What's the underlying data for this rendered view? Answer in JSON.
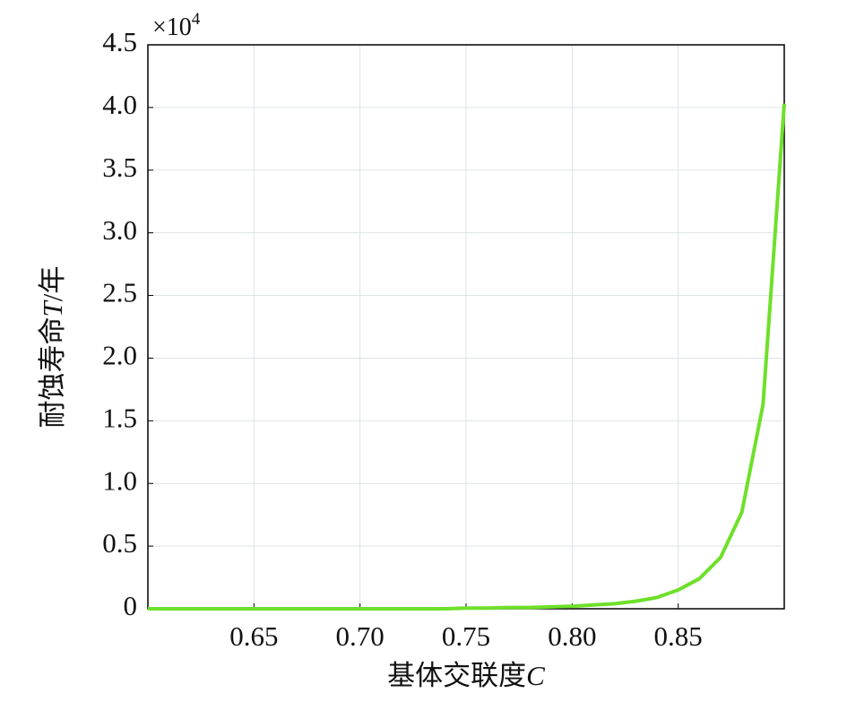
{
  "chart_data": {
    "type": "line",
    "x_label": [
      "基体交联度",
      "C"
    ],
    "y_label": [
      "耐蚀寿命",
      "T",
      "/年"
    ],
    "y_multiplier": [
      "×10",
      "4"
    ],
    "x": [
      0.6,
      0.61,
      0.62,
      0.63,
      0.64,
      0.65,
      0.66,
      0.67,
      0.68,
      0.69,
      0.7,
      0.71,
      0.72,
      0.73,
      0.74,
      0.75,
      0.76,
      0.77,
      0.78,
      0.79,
      0.8,
      0.81,
      0.82,
      0.83,
      0.84,
      0.85,
      0.86,
      0.87,
      0.88,
      0.89,
      0.9
    ],
    "series": [
      {
        "color": "#6ee02a",
        "values": [
          0,
          0,
          0,
          0,
          0,
          0,
          0,
          0,
          0,
          0,
          0,
          0,
          0,
          0,
          0,
          0.005,
          0.005,
          0.01,
          0.01,
          0.015,
          0.02,
          0.03,
          0.04,
          0.06,
          0.09,
          0.15,
          0.24,
          0.41,
          0.77,
          1.63,
          4.03
        ]
      }
    ],
    "xlim": [
      0.6,
      0.9
    ],
    "ylim": [
      0,
      4.5
    ],
    "xticks": [
      0.65,
      {
        "value": 0.7,
        "label": "0.70"
      },
      0.75,
      {
        "value": 0.8,
        "label": "0.80"
      },
      0.85
    ],
    "yticks": [
      0,
      0.5,
      {
        "value": 1,
        "label": "1.0"
      },
      1.5,
      {
        "value": 2,
        "label": "2.0"
      },
      2.5,
      {
        "value": 3,
        "label": "3.0"
      },
      3.5,
      {
        "value": 4,
        "label": "4.0"
      },
      4.5
    ],
    "grid": true
  }
}
